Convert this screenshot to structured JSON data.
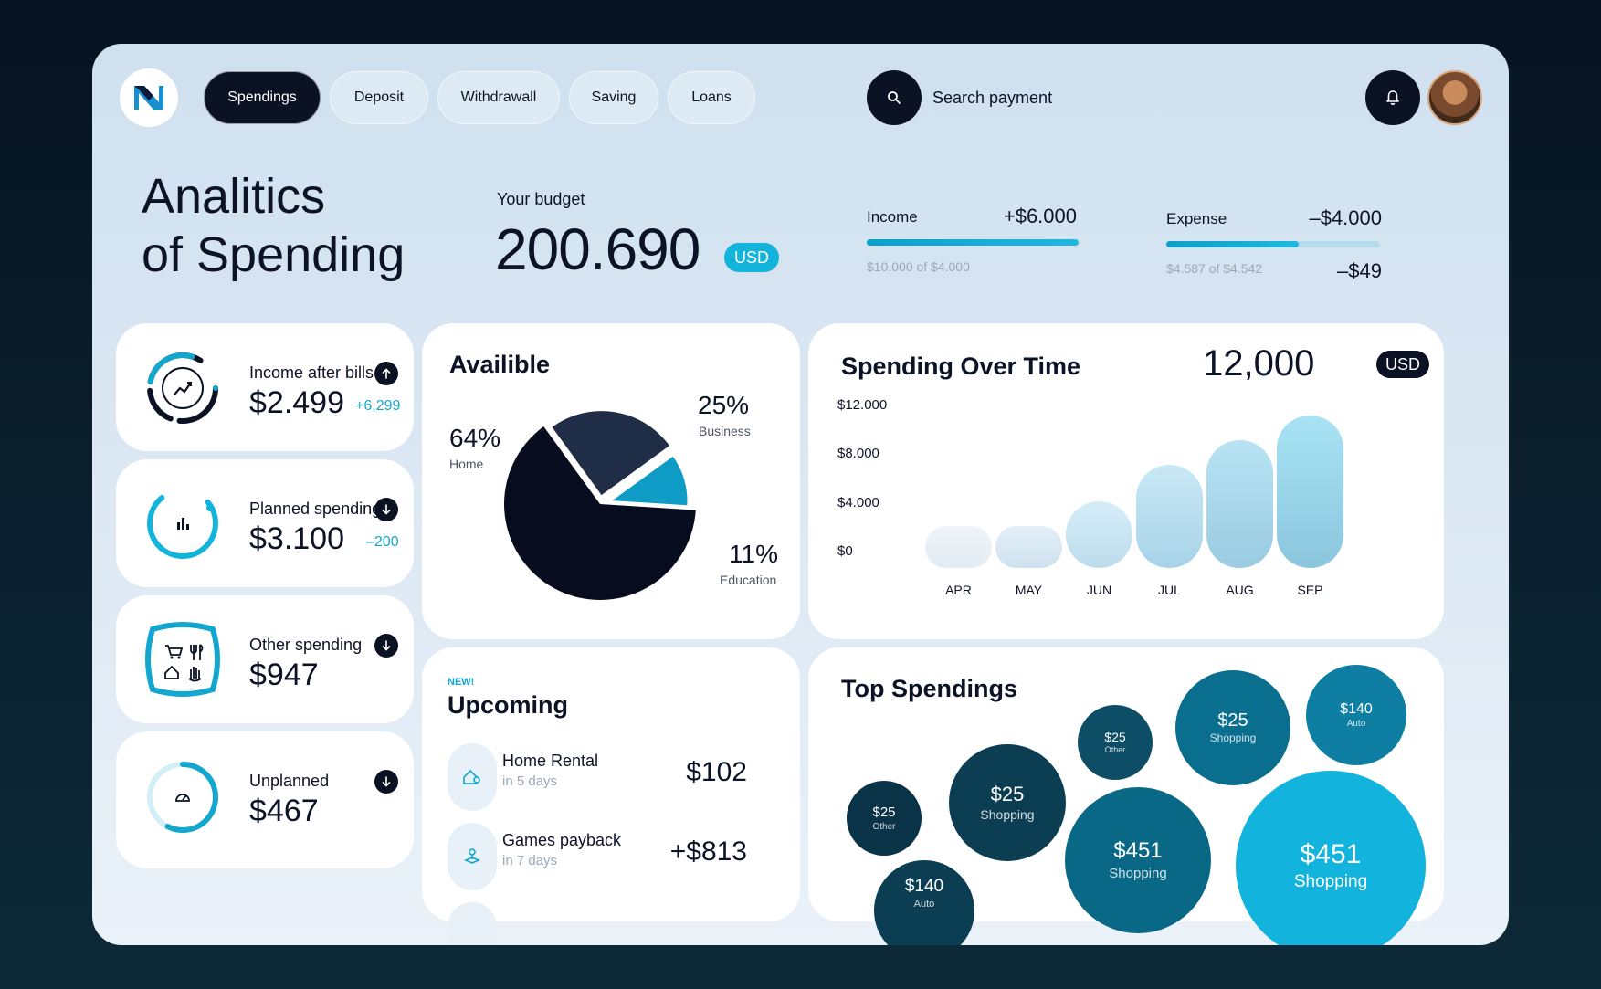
{
  "nav": {
    "tabs": [
      {
        "label": "Spendings"
      },
      {
        "label": "Deposit"
      },
      {
        "label": "Withdrawall"
      },
      {
        "label": "Saving"
      },
      {
        "label": "Loans"
      }
    ],
    "search_label": "Search payment"
  },
  "header": {
    "title_line1": "Analitics",
    "title_line2": "of Spending",
    "budget_label": "Your budget",
    "budget_value": "200.690",
    "budget_currency": "USD"
  },
  "income": {
    "label": "Income",
    "amount": "+$6.000",
    "sub": "$10.000 of $4.000",
    "progress": 1.0
  },
  "expense": {
    "label": "Expense",
    "amount": "–$4.000",
    "sub": "$4.587 of $4.542",
    "extra": "–$49",
    "progress": 0.62
  },
  "stats": [
    {
      "label": "Income after bills",
      "value": "$2.499",
      "delta": "+6,299",
      "direction": "up"
    },
    {
      "label": "Planned spending",
      "value": "$3.100",
      "delta": "–200",
      "direction": "down"
    },
    {
      "label": "Other spending",
      "value": "$947",
      "delta": "",
      "direction": "down"
    },
    {
      "label": "Unplanned",
      "value": "$467",
      "delta": "",
      "direction": "down"
    }
  ],
  "available": {
    "title": "Availible",
    "slices": [
      {
        "pct": "64%",
        "name": "Home",
        "value": 64,
        "color": "#080c1f"
      },
      {
        "pct": "25%",
        "name": "Business",
        "value": 25,
        "color": "#1f2d47"
      },
      {
        "pct": "11%",
        "name": "Education",
        "value": 11,
        "color": "#0e9cc6"
      }
    ]
  },
  "spending_over_time": {
    "title": "Spending Over Time",
    "total": "12,000",
    "currency": "USD"
  },
  "chart_data": {
    "type": "bar",
    "title": "Spending Over Time",
    "categories": [
      "APR",
      "MAY",
      "JUN",
      "JUL",
      "AUG",
      "SEP"
    ],
    "values": [
      700,
      1900,
      5500,
      8500,
      10500,
      12500
    ],
    "ytick_labels": [
      "$12.000",
      "$8.000",
      "$4.000",
      "$0"
    ],
    "yticks": [
      12000,
      8000,
      4000,
      0
    ],
    "ylim": [
      0,
      12000
    ],
    "grid": false
  },
  "upcoming": {
    "tag": "NEW!",
    "title": "Upcoming",
    "items": [
      {
        "name": "Home Rental",
        "when": "in 5 days",
        "amount": "$102",
        "icon": "house-key-icon"
      },
      {
        "name": "Games payback",
        "when": "in 7 days",
        "amount": "+$813",
        "icon": "joystick-icon"
      }
    ]
  },
  "top_spendings": {
    "title": "Top Spendings",
    "bubbles": [
      {
        "amount": "$25",
        "category": "Other",
        "color": "#0a3347"
      },
      {
        "amount": "$25",
        "category": "Shopping",
        "color": "#0b3e52"
      },
      {
        "amount": "$140",
        "category": "Auto",
        "color": "#0b3e52"
      },
      {
        "amount": "$25",
        "category": "Other",
        "color": "#0d4e66"
      },
      {
        "amount": "$451",
        "category": "Shopping",
        "color": "#0a6887"
      },
      {
        "amount": "$25",
        "category": "Shopping",
        "color": "#0a6e8f"
      },
      {
        "amount": "$140",
        "category": "Auto",
        "color": "#0e7ea3"
      },
      {
        "amount": "$451",
        "category": "Shopping",
        "color": "#12b3dc"
      }
    ]
  }
}
